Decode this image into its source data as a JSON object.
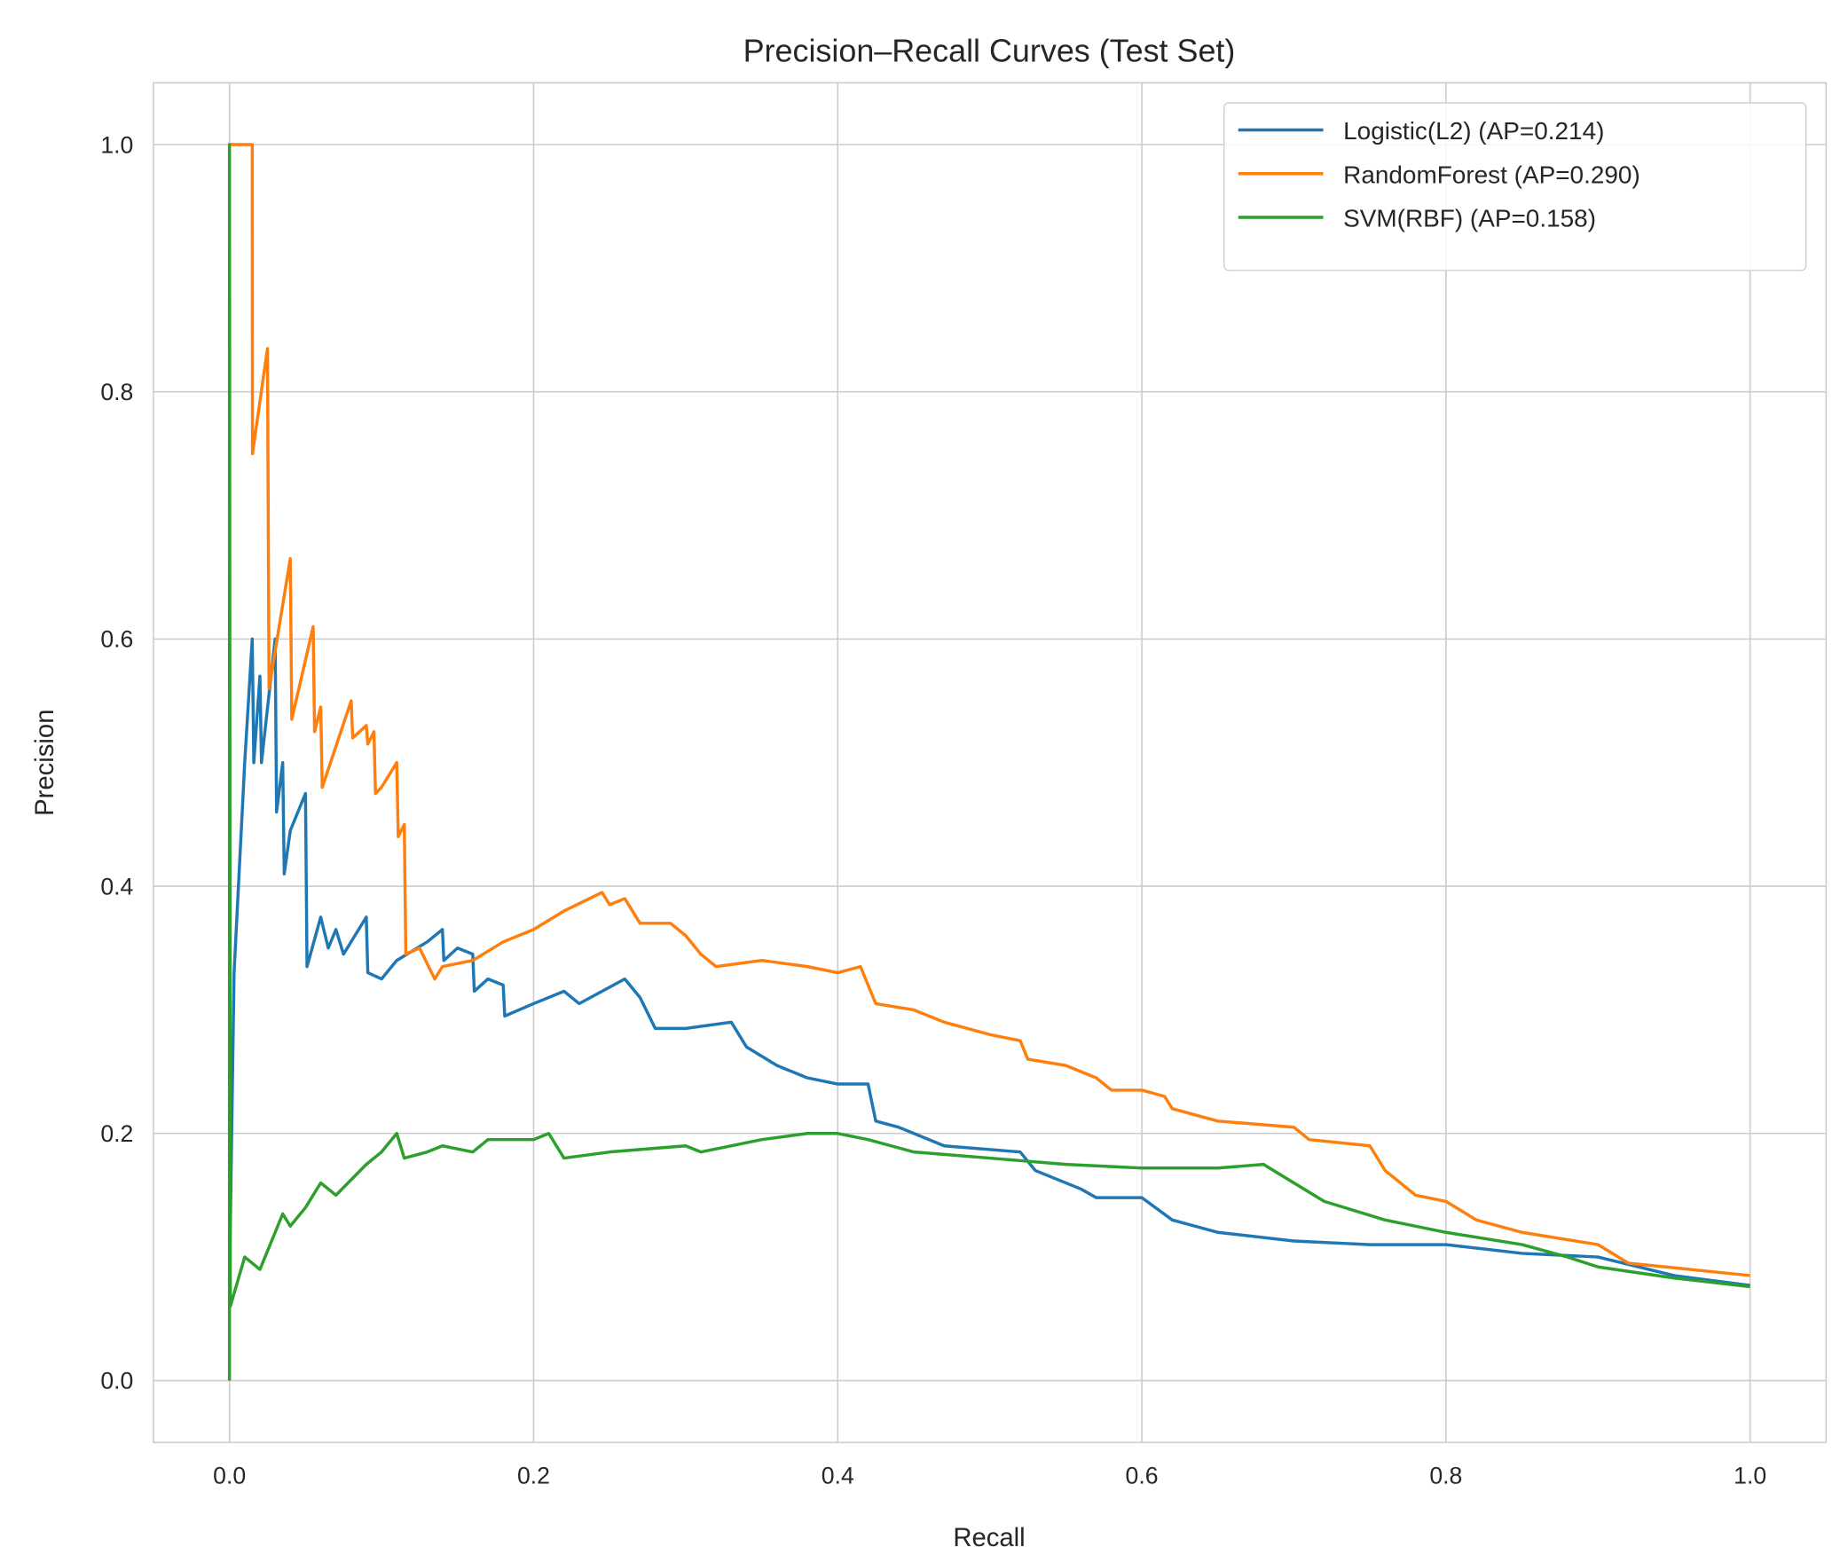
{
  "chart_data": {
    "type": "line",
    "title": "Precision–Recall Curves (Test Set)",
    "xlabel": "Recall",
    "ylabel": "Precision",
    "xlim": [
      -0.05,
      1.05
    ],
    "ylim": [
      -0.05,
      1.05
    ],
    "xticks": [
      "0.0",
      "0.2",
      "0.4",
      "0.6",
      "0.8",
      "1.0"
    ],
    "yticks": [
      "0.0",
      "0.2",
      "0.4",
      "0.6",
      "0.8",
      "1.0"
    ],
    "grid": true,
    "legend_position": "top-right",
    "series": [
      {
        "name": "Logistic(L2) (AP=0.214)",
        "color": "#1f77b4",
        "points": [
          [
            0,
            0.08
          ],
          [
            0.003,
            0.33
          ],
          [
            0.01,
            0.5
          ],
          [
            0.015,
            0.6
          ],
          [
            0.016,
            0.5
          ],
          [
            0.02,
            0.57
          ],
          [
            0.021,
            0.5
          ],
          [
            0.03,
            0.6
          ],
          [
            0.031,
            0.46
          ],
          [
            0.035,
            0.5
          ],
          [
            0.036,
            0.41
          ],
          [
            0.04,
            0.445
          ],
          [
            0.05,
            0.475
          ],
          [
            0.051,
            0.335
          ],
          [
            0.06,
            0.375
          ],
          [
            0.065,
            0.35
          ],
          [
            0.07,
            0.365
          ],
          [
            0.075,
            0.345
          ],
          [
            0.09,
            0.375
          ],
          [
            0.091,
            0.33
          ],
          [
            0.1,
            0.325
          ],
          [
            0.11,
            0.34
          ],
          [
            0.13,
            0.355
          ],
          [
            0.14,
            0.365
          ],
          [
            0.141,
            0.34
          ],
          [
            0.15,
            0.35
          ],
          [
            0.16,
            0.345
          ],
          [
            0.161,
            0.315
          ],
          [
            0.17,
            0.325
          ],
          [
            0.18,
            0.32
          ],
          [
            0.181,
            0.295
          ],
          [
            0.2,
            0.305
          ],
          [
            0.22,
            0.315
          ],
          [
            0.23,
            0.305
          ],
          [
            0.26,
            0.325
          ],
          [
            0.27,
            0.31
          ],
          [
            0.28,
            0.285
          ],
          [
            0.3,
            0.285
          ],
          [
            0.33,
            0.29
          ],
          [
            0.34,
            0.27
          ],
          [
            0.36,
            0.255
          ],
          [
            0.38,
            0.245
          ],
          [
            0.4,
            0.24
          ],
          [
            0.42,
            0.24
          ],
          [
            0.425,
            0.21
          ],
          [
            0.44,
            0.205
          ],
          [
            0.47,
            0.19
          ],
          [
            0.52,
            0.185
          ],
          [
            0.53,
            0.17
          ],
          [
            0.56,
            0.155
          ],
          [
            0.57,
            0.148
          ],
          [
            0.6,
            0.148
          ],
          [
            0.62,
            0.13
          ],
          [
            0.65,
            0.12
          ],
          [
            0.7,
            0.113
          ],
          [
            0.75,
            0.11
          ],
          [
            0.8,
            0.11
          ],
          [
            0.85,
            0.103
          ],
          [
            0.9,
            0.1
          ],
          [
            0.95,
            0.085
          ],
          [
            1.0,
            0.077
          ]
        ]
      },
      {
        "name": "RandomForest (AP=0.290)",
        "color": "#ff7f0e",
        "points": [
          [
            0,
            1.0
          ],
          [
            0.015,
            1.0
          ],
          [
            0.0151,
            0.75
          ],
          [
            0.025,
            0.835
          ],
          [
            0.026,
            0.56
          ],
          [
            0.04,
            0.665
          ],
          [
            0.041,
            0.535
          ],
          [
            0.055,
            0.61
          ],
          [
            0.056,
            0.525
          ],
          [
            0.06,
            0.545
          ],
          [
            0.061,
            0.48
          ],
          [
            0.08,
            0.55
          ],
          [
            0.081,
            0.52
          ],
          [
            0.09,
            0.53
          ],
          [
            0.091,
            0.515
          ],
          [
            0.095,
            0.525
          ],
          [
            0.096,
            0.475
          ],
          [
            0.1,
            0.48
          ],
          [
            0.11,
            0.5
          ],
          [
            0.111,
            0.44
          ],
          [
            0.115,
            0.45
          ],
          [
            0.116,
            0.345
          ],
          [
            0.125,
            0.35
          ],
          [
            0.135,
            0.325
          ],
          [
            0.14,
            0.335
          ],
          [
            0.16,
            0.34
          ],
          [
            0.18,
            0.355
          ],
          [
            0.2,
            0.365
          ],
          [
            0.22,
            0.38
          ],
          [
            0.245,
            0.395
          ],
          [
            0.25,
            0.385
          ],
          [
            0.26,
            0.39
          ],
          [
            0.27,
            0.37
          ],
          [
            0.29,
            0.37
          ],
          [
            0.3,
            0.36
          ],
          [
            0.31,
            0.345
          ],
          [
            0.32,
            0.335
          ],
          [
            0.35,
            0.34
          ],
          [
            0.38,
            0.335
          ],
          [
            0.4,
            0.33
          ],
          [
            0.415,
            0.335
          ],
          [
            0.42,
            0.32
          ],
          [
            0.425,
            0.305
          ],
          [
            0.45,
            0.3
          ],
          [
            0.47,
            0.29
          ],
          [
            0.5,
            0.28
          ],
          [
            0.52,
            0.275
          ],
          [
            0.525,
            0.26
          ],
          [
            0.55,
            0.255
          ],
          [
            0.57,
            0.245
          ],
          [
            0.58,
            0.235
          ],
          [
            0.6,
            0.235
          ],
          [
            0.615,
            0.23
          ],
          [
            0.62,
            0.22
          ],
          [
            0.65,
            0.21
          ],
          [
            0.7,
            0.205
          ],
          [
            0.71,
            0.195
          ],
          [
            0.75,
            0.19
          ],
          [
            0.76,
            0.17
          ],
          [
            0.78,
            0.15
          ],
          [
            0.8,
            0.145
          ],
          [
            0.82,
            0.13
          ],
          [
            0.85,
            0.12
          ],
          [
            0.9,
            0.11
          ],
          [
            0.92,
            0.095
          ],
          [
            1.0,
            0.085
          ]
        ]
      },
      {
        "name": "SVM(RBF) (AP=0.158)",
        "color": "#2ca02c",
        "points": [
          [
            0,
            0
          ],
          [
            0,
            1.0
          ],
          [
            0.0005,
            0.06
          ],
          [
            0.01,
            0.1
          ],
          [
            0.02,
            0.09
          ],
          [
            0.03,
            0.12
          ],
          [
            0.035,
            0.135
          ],
          [
            0.04,
            0.125
          ],
          [
            0.05,
            0.14
          ],
          [
            0.06,
            0.16
          ],
          [
            0.07,
            0.15
          ],
          [
            0.09,
            0.175
          ],
          [
            0.1,
            0.185
          ],
          [
            0.11,
            0.2
          ],
          [
            0.115,
            0.18
          ],
          [
            0.13,
            0.185
          ],
          [
            0.14,
            0.19
          ],
          [
            0.16,
            0.185
          ],
          [
            0.17,
            0.195
          ],
          [
            0.2,
            0.195
          ],
          [
            0.21,
            0.2
          ],
          [
            0.22,
            0.18
          ],
          [
            0.25,
            0.185
          ],
          [
            0.3,
            0.19
          ],
          [
            0.31,
            0.185
          ],
          [
            0.35,
            0.195
          ],
          [
            0.38,
            0.2
          ],
          [
            0.4,
            0.2
          ],
          [
            0.42,
            0.195
          ],
          [
            0.45,
            0.185
          ],
          [
            0.5,
            0.18
          ],
          [
            0.55,
            0.175
          ],
          [
            0.6,
            0.172
          ],
          [
            0.65,
            0.172
          ],
          [
            0.68,
            0.175
          ],
          [
            0.7,
            0.16
          ],
          [
            0.72,
            0.145
          ],
          [
            0.76,
            0.13
          ],
          [
            0.8,
            0.12
          ],
          [
            0.85,
            0.11
          ],
          [
            0.88,
            0.1
          ],
          [
            0.9,
            0.092
          ],
          [
            0.95,
            0.083
          ],
          [
            1.0,
            0.076
          ]
        ]
      }
    ]
  }
}
